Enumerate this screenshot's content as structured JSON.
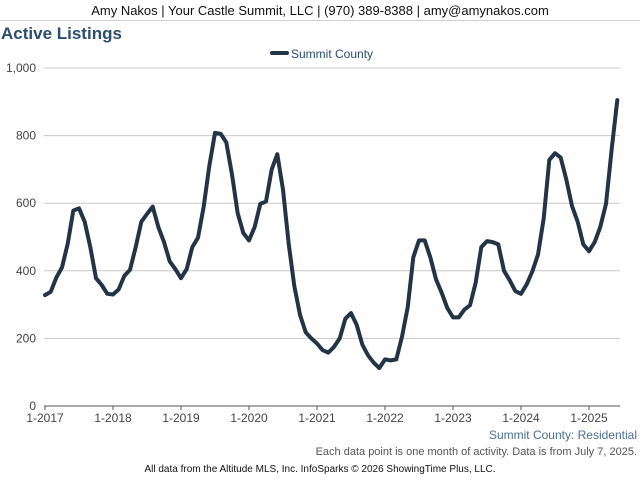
{
  "header": {
    "contact": "Amy Nakos | Your Castle Summit, LLC | (970) 389-8388 | amy@amynakos.com"
  },
  "chart_data": {
    "type": "line",
    "title": "Active Listings",
    "subtitle": "Summit County: Residential",
    "note": "Each data point is one month of activity. Data is from July 7, 2025.",
    "source": "All data from the Altitude MLS, Inc. InfoSparks © 2026 ShowingTime Plus, LLC.",
    "legend_position": "top-center",
    "grid": true,
    "ylim": [
      0,
      1000
    ],
    "y_ticks": [
      "0",
      "200",
      "400",
      "600",
      "800",
      "1,000"
    ],
    "y_tick_values": [
      0,
      200,
      400,
      600,
      800,
      1000
    ],
    "x_ticks": [
      "1-2017",
      "1-2018",
      "1-2019",
      "1-2020",
      "1-2021",
      "1-2022",
      "1-2023",
      "1-2024",
      "1-2025"
    ],
    "x_start": "2017-01",
    "line_color": "#233447",
    "series": [
      {
        "name": "Summit County",
        "values": [
          328,
          338,
          380,
          410,
          480,
          578,
          585,
          545,
          470,
          378,
          358,
          332,
          330,
          345,
          385,
          403,
          470,
          545,
          568,
          590,
          530,
          485,
          428,
          405,
          378,
          405,
          470,
          498,
          590,
          710,
          808,
          805,
          780,
          685,
          570,
          512,
          490,
          530,
          598,
          605,
          700,
          745,
          640,
          480,
          355,
          270,
          218,
          200,
          185,
          165,
          158,
          175,
          200,
          258,
          275,
          240,
          182,
          150,
          128,
          112,
          138,
          135,
          138,
          205,
          292,
          440,
          490,
          490,
          440,
          375,
          335,
          290,
          262,
          262,
          285,
          298,
          365,
          470,
          488,
          485,
          478,
          400,
          372,
          340,
          332,
          360,
          398,
          448,
          555,
          728,
          748,
          735,
          670,
          592,
          545,
          478,
          458,
          485,
          530,
          598,
          760,
          905
        ]
      }
    ]
  }
}
